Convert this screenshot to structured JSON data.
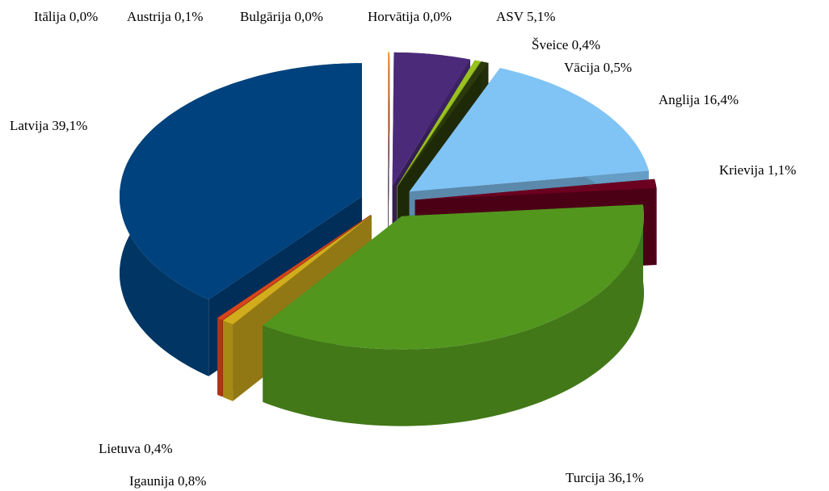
{
  "chart_data": {
    "type": "pie3d",
    "categories": [
      "Itālija",
      "Austrija",
      "Bulgārija",
      "Horvātija",
      "ASV",
      "Šveice",
      "Vācija",
      "Anglija",
      "Krievija",
      "Turcija",
      "Igaunija",
      "Lietuva",
      "Latvija"
    ],
    "values": [
      0.0,
      0.1,
      0.0,
      0.0,
      5.1,
      0.4,
      0.5,
      16.4,
      1.1,
      36.1,
      0.8,
      0.4,
      39.1
    ],
    "value_labels": [
      "0,0%",
      "0,1%",
      "0,0%",
      "0,0%",
      "5,1%",
      "0,4%",
      "0,5%",
      "16,4%",
      "1,1%",
      "36,1%",
      "0,8%",
      "0,4%",
      "39,1%"
    ],
    "colors": [
      "#4f81bd",
      "#f79646",
      "#9bbb59",
      "#8064a2",
      "#4b2a7a",
      "#9ac21e",
      "#2b3a0c",
      "#80c4f6",
      "#6b0020",
      "#52961e",
      "#d1ac1c",
      "#d9441a",
      "#00427d"
    ]
  }
}
